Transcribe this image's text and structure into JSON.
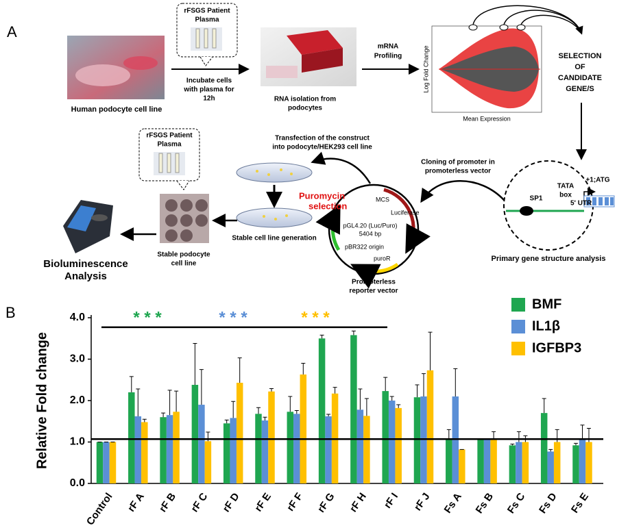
{
  "panel_a": {
    "label": "A",
    "plasma_bubble_1": [
      "rFSGS Patient",
      "Plasma"
    ],
    "cell_line": "Human podocyte cell line",
    "incubate": [
      "Incubate cells",
      "with plasma for",
      "12h"
    ],
    "rna": [
      "RNA isolation from",
      "podocytes"
    ],
    "mrna": [
      "mRNA",
      "Profiling"
    ],
    "ma_plot": {
      "y_label": "Log Fold Change",
      "x_label": "Mean Expression"
    },
    "selection": [
      "SELECTION",
      "OF",
      "CANDIDATE",
      "GENE/S"
    ],
    "gene": {
      "sp1": "SP1",
      "tata": [
        "TATA",
        "box"
      ],
      "utr": "5' UTR",
      "atg": "+1;ATG"
    },
    "gene_caption": "Primary gene structure analysis",
    "cloning": [
      "Cloning of promoter in",
      "promoterless vector"
    ],
    "plasmid": {
      "mcs": "MCS",
      "luciferase": "Luciferase",
      "name": "pGL4.20 (Luc/Puro)",
      "size": "5404 bp",
      "origin": "pBR322 origin",
      "puro": "puroR"
    },
    "vector_caption": [
      "Promoterless",
      "reporter vector"
    ],
    "transfection": [
      "Transfection of  the construct",
      "into podocyte/HEK293 cell line"
    ],
    "puromycin": [
      "Puromycin",
      "selection"
    ],
    "stable_generation": "Stable cell line generation",
    "plasma_bubble_2": [
      "rFSGS Patient",
      "Plasma"
    ],
    "stable_cell": [
      "Stable podocyte",
      "cell line"
    ],
    "bioluminescence": [
      "Bioluminescence",
      "Analysis"
    ]
  },
  "chart_data": {
    "type": "bar",
    "label": "B",
    "ylabel": "Relative Fold change",
    "categories": [
      "Control",
      "rF A",
      "rF B",
      "rF C",
      "rF D",
      "rF E",
      "rF F",
      "rF G",
      "rF H",
      "rF I",
      "rF J",
      "Fs A",
      "Fs B",
      "Fs C",
      "Fs D",
      "Fs E"
    ],
    "series": [
      {
        "name": "BMF",
        "color": "#1fa650",
        "values": [
          1.0,
          2.2,
          1.6,
          2.38,
          1.45,
          1.68,
          1.73,
          3.5,
          3.58,
          2.23,
          2.08,
          1.05,
          1.05,
          0.92,
          1.7,
          0.92
        ],
        "errors": [
          0.0,
          0.38,
          0.1,
          1.0,
          0.08,
          0.15,
          0.37,
          0.08,
          0.1,
          0.33,
          0.3,
          0.25,
          0.03,
          0.03,
          0.35,
          0.05
        ]
      },
      {
        "name": "IL1β",
        "color": "#5b8fd6",
        "values": [
          1.0,
          1.62,
          1.65,
          1.9,
          1.58,
          1.52,
          1.68,
          1.62,
          1.78,
          2.0,
          2.1,
          2.1,
          1.05,
          1.0,
          0.77,
          1.08
        ],
        "errors": [
          0.0,
          0.66,
          0.6,
          0.85,
          0.4,
          0.08,
          0.08,
          0.05,
          0.5,
          0.1,
          0.55,
          0.67,
          0.03,
          0.25,
          0.05,
          0.33
        ]
      },
      {
        "name": "IGFBP3",
        "color": "#ffc000",
        "values": [
          1.0,
          1.48,
          1.73,
          1.02,
          2.43,
          2.22,
          2.63,
          2.17,
          1.63,
          1.82,
          2.73,
          0.82,
          1.05,
          1.0,
          1.0,
          1.0
        ],
        "errors": [
          0.0,
          0.07,
          0.5,
          0.22,
          0.6,
          0.07,
          0.27,
          0.15,
          0.42,
          0.08,
          0.92,
          0.0,
          0.2,
          0.15,
          0.3,
          0.33
        ]
      }
    ],
    "ylim": [
      0,
      4.0
    ],
    "yticks": [
      {
        "value": 0,
        "label": "0.0"
      },
      {
        "value": 1,
        "label": "1.0"
      },
      {
        "value": 2,
        "label": "2.0"
      },
      {
        "value": 3,
        "label": "3.0"
      },
      {
        "value": 4,
        "label": "4.0"
      }
    ],
    "hlines": [
      1.07,
      3.77
    ],
    "significance": [
      {
        "label": "* * *",
        "color": "#1fa650"
      },
      {
        "label": "* * *",
        "color": "#5b8fd6"
      },
      {
        "label": "* * *",
        "color": "#ffc000"
      }
    ],
    "legend": "upper right"
  }
}
